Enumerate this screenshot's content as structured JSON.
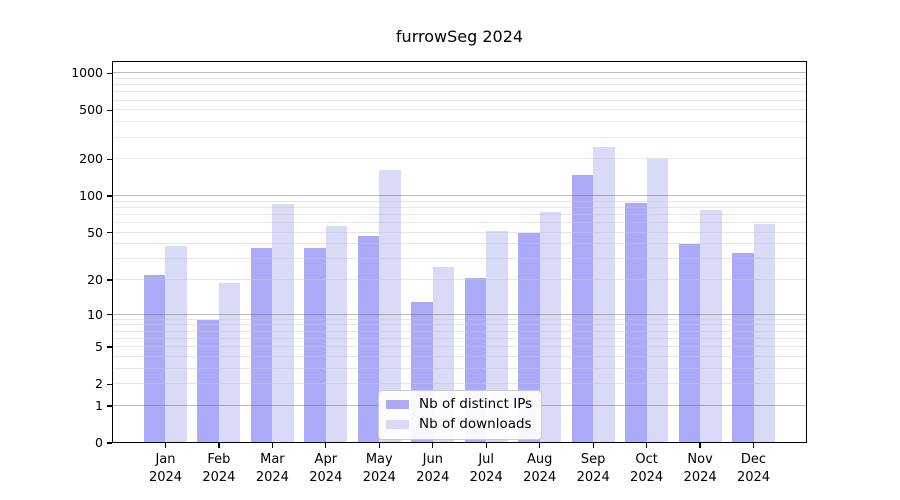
{
  "chart_data": {
    "type": "bar",
    "title": "furrowSeg 2024",
    "categories": [
      "Jan 2024",
      "Feb 2024",
      "Mar 2024",
      "Apr 2024",
      "May 2024",
      "Jun 2024",
      "Jul 2024",
      "Aug 2024",
      "Sep 2024",
      "Oct 2024",
      "Nov 2024",
      "Dec 2024"
    ],
    "series": [
      {
        "name": "Nb of distinct IPs",
        "color": "#aaaaf8",
        "values": [
          22,
          9,
          37,
          37,
          47,
          13,
          21,
          50,
          150,
          88,
          40,
          34
        ]
      },
      {
        "name": "Nb of downloads",
        "color": "#d9d9f8",
        "values": [
          39,
          19,
          86,
          57,
          163,
          26,
          52,
          74,
          250,
          200,
          77,
          59
        ]
      }
    ],
    "xlabel": "",
    "ylabel": "",
    "yscale": "log1p",
    "yticks": [
      0,
      1,
      2,
      5,
      10,
      20,
      50,
      100,
      200,
      500,
      1000
    ],
    "ylim": [
      0,
      1250
    ],
    "grid": true,
    "legend_position": "lower-center-inside",
    "colors": {
      "major_gridline": "#b4b4b4",
      "minor_gridline": "#e6e6e6",
      "axis": "#000000",
      "background": "#ffffff"
    }
  }
}
